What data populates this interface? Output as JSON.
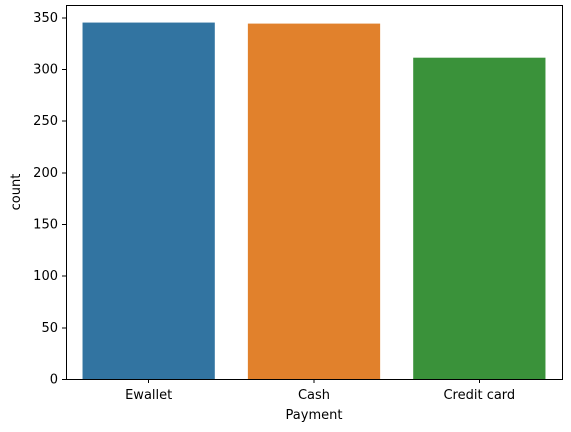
{
  "chart_data": {
    "type": "bar",
    "categories": [
      "Ewallet",
      "Cash",
      "Credit card"
    ],
    "values": [
      345,
      344,
      311
    ],
    "xlabel": "Payment",
    "ylabel": "count",
    "ylim": [
      0,
      362
    ],
    "yticks": [
      0,
      50,
      100,
      150,
      200,
      250,
      300,
      350
    ],
    "colors": [
      "#3274a1",
      "#e1812c",
      "#3a923a"
    ],
    "grid": false
  }
}
